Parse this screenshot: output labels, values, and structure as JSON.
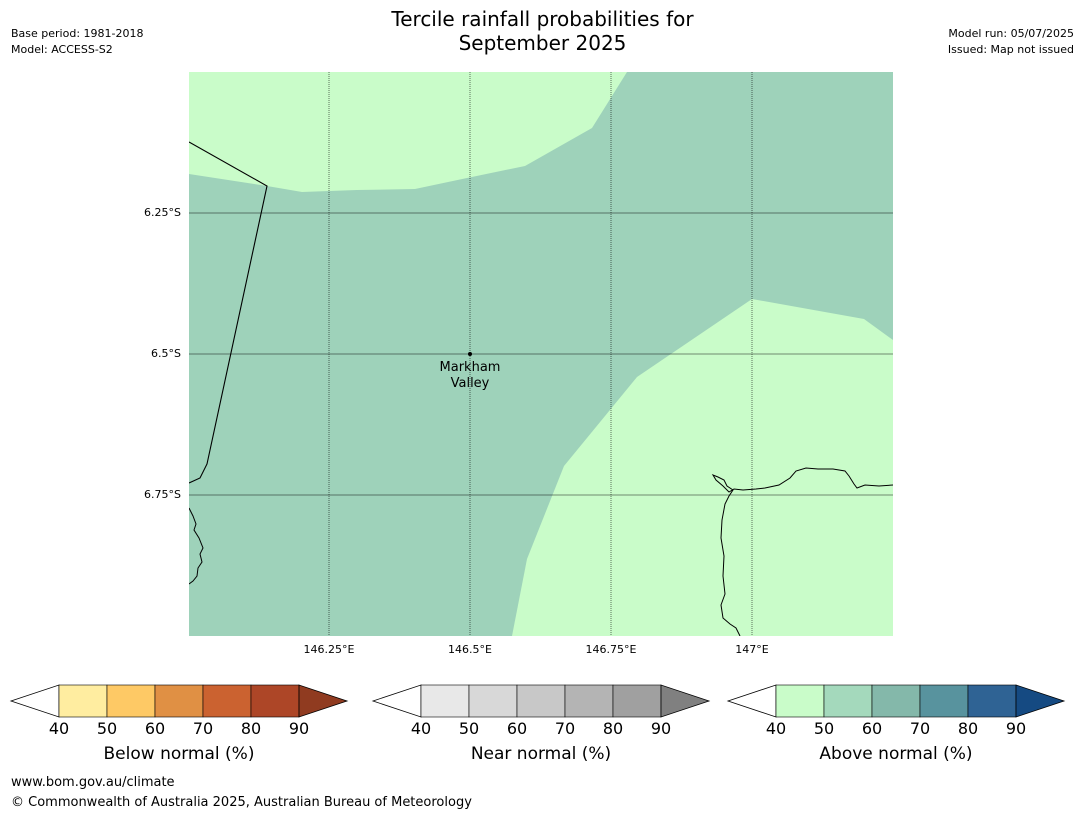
{
  "header": {
    "title_line1": "Tercile rainfall probabilities for",
    "title_line2": "September 2025",
    "base_period": "Base period: 1981-2018",
    "model": "Model: ACCESS-S2",
    "model_run": "Model run: 05/07/2025",
    "issued": "Issued: Map not issued"
  },
  "map": {
    "latitude_labels": [
      "6.25°S",
      "6.5°S",
      "6.75°S"
    ],
    "longitude_labels": [
      "146.25°E",
      "146.5°E",
      "146.75°E",
      "147°E"
    ],
    "place_label_line1": "Markham",
    "place_label_line2": "Valley",
    "colors": {
      "above_40_50": "#c9fcc9",
      "above_50_60": "#9ed2ba"
    }
  },
  "legends": [
    {
      "title": "Below normal (%)",
      "ticks": [
        "40",
        "50",
        "60",
        "70",
        "80",
        "90"
      ],
      "colors": [
        "#ffeda0",
        "#fec965",
        "#e09044",
        "#cb6230",
        "#ad4627",
        "#903b20"
      ]
    },
    {
      "title": "Near normal (%)",
      "ticks": [
        "40",
        "50",
        "60",
        "70",
        "80",
        "90"
      ],
      "colors": [
        "#e8e8e8",
        "#d8d8d8",
        "#c8c8c8",
        "#b4b4b4",
        "#a0a0a0",
        "#808080"
      ]
    },
    {
      "title": "Above normal (%)",
      "ticks": [
        "40",
        "50",
        "60",
        "70",
        "80",
        "90"
      ],
      "colors": [
        "#c9fcc9",
        "#a4d9bc",
        "#84b8aa",
        "#58939e",
        "#2f6394",
        "#154a82"
      ]
    }
  ],
  "footer": {
    "url": "www.bom.gov.au/climate",
    "copyright": "© Commonwealth of Australia 2025, Australian Bureau of Meteorology"
  }
}
